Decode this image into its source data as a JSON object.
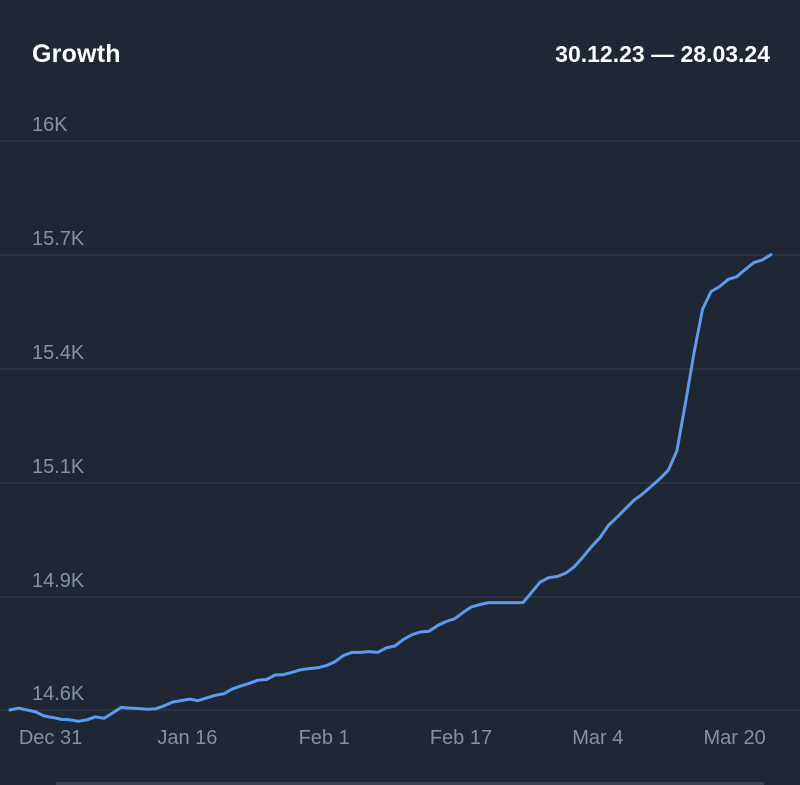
{
  "header": {
    "title": "Growth",
    "date_range": "30.12.23 — 28.03.24"
  },
  "chart_data": {
    "type": "line",
    "title": "Growth",
    "xlabel": "",
    "ylabel": "",
    "x_ticks": [
      "Dec 31",
      "Jan 16",
      "Feb 1",
      "Feb 17",
      "Mar 4",
      "Mar 20"
    ],
    "y_ticks": [
      {
        "value": 14600,
        "label": "14.6K"
      },
      {
        "value": 14900,
        "label": "14.9K"
      },
      {
        "value": 15100,
        "label": "15.1K"
      },
      {
        "value": 15400,
        "label": "15.4K"
      },
      {
        "value": 15700,
        "label": "15.7K"
      },
      {
        "value": 16000,
        "label": "16K"
      }
    ],
    "ylim": [
      14600,
      16000
    ],
    "grid": "horizontal",
    "line_color": "#5b9cf0",
    "series": [
      {
        "x": [
          "2023-12-30",
          "2023-12-31",
          "2024-01-01",
          "2024-01-02",
          "2024-01-03",
          "2024-01-04",
          "2024-01-05",
          "2024-01-06",
          "2024-01-07",
          "2024-01-08",
          "2024-01-09",
          "2024-01-10",
          "2024-01-11",
          "2024-01-12",
          "2024-01-13",
          "2024-01-14",
          "2024-01-15",
          "2024-01-16",
          "2024-01-17",
          "2024-01-18",
          "2024-01-19",
          "2024-01-20",
          "2024-01-21",
          "2024-01-22",
          "2024-01-23",
          "2024-01-24",
          "2024-01-25",
          "2024-01-26",
          "2024-01-27",
          "2024-01-28",
          "2024-01-29",
          "2024-01-30",
          "2024-01-31",
          "2024-02-01",
          "2024-02-02",
          "2024-02-03",
          "2024-02-04",
          "2024-02-05",
          "2024-02-06",
          "2024-02-07",
          "2024-02-08",
          "2024-02-09",
          "2024-02-10",
          "2024-02-11",
          "2024-02-12",
          "2024-02-13",
          "2024-02-14",
          "2024-02-15",
          "2024-02-16",
          "2024-02-17",
          "2024-02-18",
          "2024-02-19",
          "2024-02-20",
          "2024-02-21",
          "2024-02-22",
          "2024-02-23",
          "2024-02-24",
          "2024-02-25",
          "2024-02-26",
          "2024-02-27",
          "2024-02-28",
          "2024-02-29",
          "2024-03-01",
          "2024-03-02",
          "2024-03-03",
          "2024-03-04",
          "2024-03-05",
          "2024-03-06",
          "2024-03-07",
          "2024-03-08",
          "2024-03-09",
          "2024-03-10",
          "2024-03-11",
          "2024-03-12",
          "2024-03-13",
          "2024-03-14",
          "2024-03-15",
          "2024-03-16",
          "2024-03-17",
          "2024-03-18",
          "2024-03-19",
          "2024-03-20",
          "2024-03-21",
          "2024-03-22",
          "2024-03-23",
          "2024-03-24",
          "2024-03-25",
          "2024-03-26",
          "2024-03-27",
          "2024-03-28"
        ],
        "y": [
          14600,
          14605,
          14600,
          14595,
          14584,
          14580,
          14575,
          14574,
          14570,
          14574,
          14582,
          14578,
          14592,
          14607,
          14605,
          14604,
          14602,
          14603,
          14611,
          14621,
          14625,
          14629,
          14625,
          14632,
          14639,
          14643,
          14656,
          14664,
          14671,
          14679,
          14681,
          14693,
          14694,
          14700,
          14707,
          14710,
          14712,
          14718,
          14728,
          14745,
          14753,
          14753,
          14755,
          14753,
          14765,
          14770,
          14787,
          14800,
          14807,
          14809,
          14824,
          14835,
          14842,
          14859,
          14874,
          14880,
          14885,
          14885,
          14885,
          14885,
          14885,
          14908,
          14926,
          14934,
          14936,
          14942,
          14953,
          14970,
          14988,
          15004,
          15026,
          15040,
          15055,
          15070,
          15081,
          15094,
          15111,
          15134,
          15185,
          15311,
          15442,
          15558,
          15604,
          15617,
          15636,
          15643,
          15662,
          15680,
          15687,
          15701
        ]
      }
    ]
  }
}
